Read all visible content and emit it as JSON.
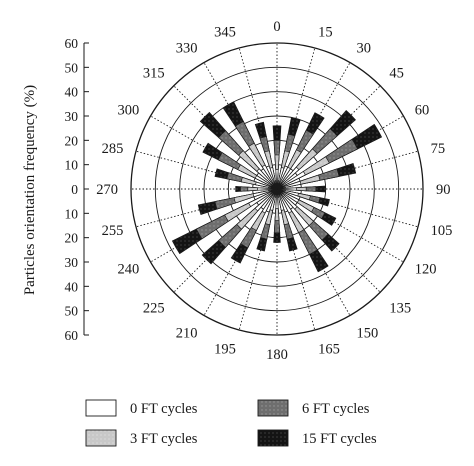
{
  "chart_data": {
    "type": "polar-bar",
    "title": "",
    "ylabel": "Particles orientation frequency (%)",
    "radial_max": 60,
    "radial_ticks": [
      0,
      10,
      20,
      30,
      40,
      50,
      60
    ],
    "radial_ticks_upper": [
      "60",
      "50",
      "40",
      "30",
      "20",
      "10",
      "0"
    ],
    "radial_ticks_lower": [
      "10",
      "20",
      "30",
      "40",
      "50",
      "60"
    ],
    "angle_step_deg": 15,
    "grid": true,
    "legend_position": "bottom",
    "angle_labels": [
      "0",
      "15",
      "30",
      "45",
      "60",
      "75",
      "90",
      "105",
      "120",
      "135",
      "150",
      "165",
      "180",
      "195",
      "210",
      "225",
      "240",
      "255",
      "270",
      "285",
      "300",
      "315",
      "330",
      "345"
    ],
    "categories_deg": [
      0,
      15,
      30,
      45,
      60,
      75,
      90,
      105,
      120,
      135,
      150,
      165,
      180,
      195,
      210,
      225,
      240,
      255,
      270,
      285,
      300,
      315,
      330,
      345
    ],
    "series": [
      {
        "name": "0 FT cycles",
        "color": "#ffffff",
        "values": [
          8,
          9,
          10,
          12,
          13,
          10,
          8,
          9,
          10,
          11,
          11,
          9,
          8,
          9,
          11,
          12,
          13,
          10,
          8,
          9,
          10,
          11,
          11,
          9
        ]
      },
      {
        "name": "3 FT cycles",
        "color": "#c8c8c8",
        "values": [
          14,
          16,
          18,
          22,
          24,
          18,
          12,
          14,
          17,
          20,
          20,
          15,
          13,
          15,
          19,
          22,
          24,
          18,
          12,
          15,
          18,
          21,
          21,
          16
        ]
      },
      {
        "name": "6 FT cycles",
        "color": "#6e6e6e",
        "values": [
          20,
          23,
          27,
          33,
          37,
          26,
          16,
          18,
          22,
          28,
          30,
          21,
          18,
          21,
          27,
          32,
          37,
          26,
          15,
          21,
          27,
          32,
          31,
          22
        ]
      },
      {
        "name": "15 FT cycles",
        "color": "#141414",
        "values": [
          26,
          30,
          35,
          43,
          48,
          33,
          20,
          22,
          27,
          34,
          38,
          26,
          22,
          26,
          34,
          41,
          48,
          33,
          17,
          26,
          34,
          42,
          40,
          28
        ]
      }
    ]
  }
}
